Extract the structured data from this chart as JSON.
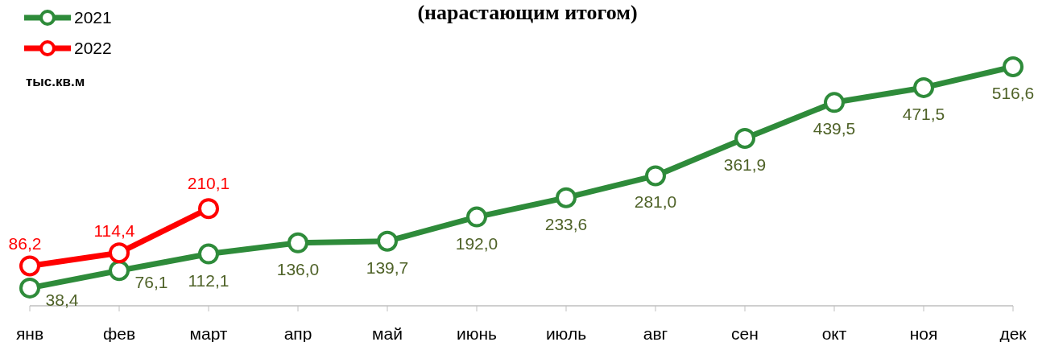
{
  "chart_data": {
    "type": "line",
    "title": "(нарастающим итогом)",
    "ylabel": "тыс.кв.м",
    "categories": [
      "янв",
      "фев",
      "март",
      "апр",
      "май",
      "июнь",
      "июль",
      "авг",
      "сен",
      "окт",
      "ноя",
      "дек"
    ],
    "series": [
      {
        "name": "2021",
        "color": "#2e8b3a",
        "values": [
          38.4,
          76.1,
          112.1,
          136.0,
          139.7,
          192.0,
          233.6,
          281.0,
          361.9,
          439.5,
          471.5,
          516.6
        ],
        "value_labels": [
          "38,4",
          "76,1",
          "112,1",
          "136,0",
          "139,7",
          "192,0",
          "233,6",
          "281,0",
          "361,9",
          "439,5",
          "471,5",
          "516,6"
        ]
      },
      {
        "name": "2022",
        "color": "#ff0000",
        "values": [
          86.2,
          114.4,
          210.1,
          null,
          null,
          null,
          null,
          null,
          null,
          null,
          null,
          null
        ],
        "value_labels": [
          "86,2",
          "114,4",
          "210,1",
          null,
          null,
          null,
          null,
          null,
          null,
          null,
          null,
          null
        ]
      }
    ],
    "marker": "circle",
    "line_style": "solid",
    "legend": "top left"
  }
}
